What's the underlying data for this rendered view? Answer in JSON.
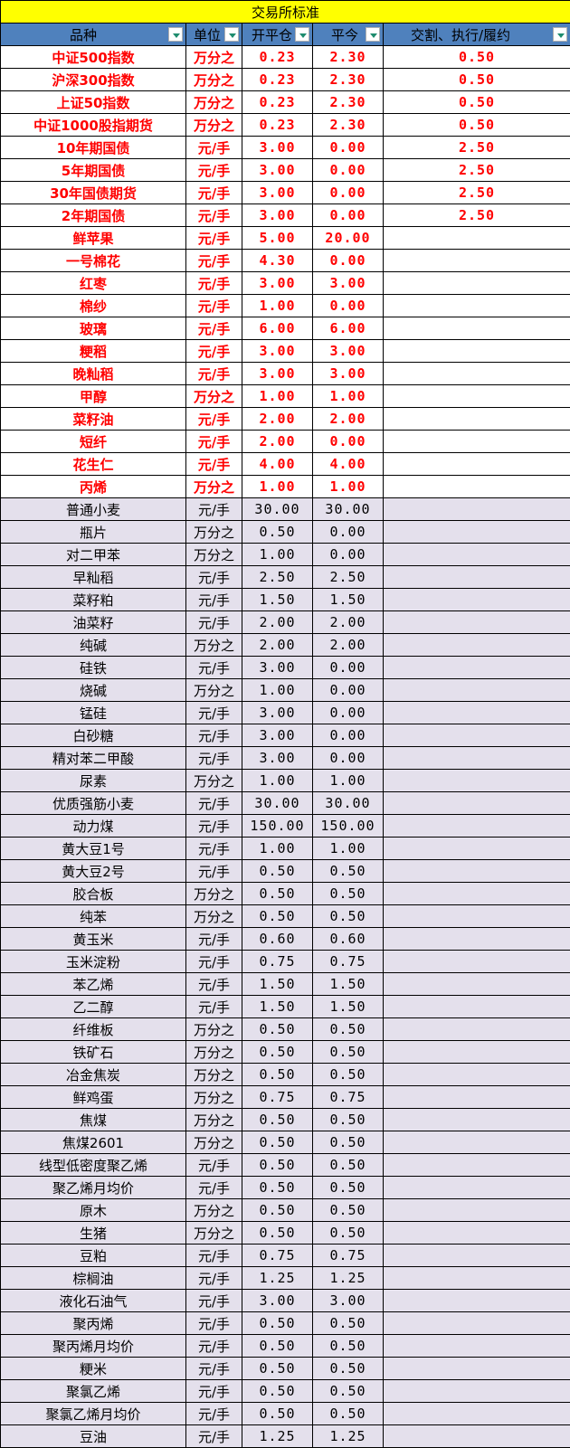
{
  "title": "交易所标准",
  "headers": [
    "品种",
    "单位",
    "开平仓",
    "平今",
    "交割、执行/履约"
  ],
  "colors": {
    "title_bg": "#ffff00",
    "header_bg": "#4f81bd",
    "highlight_text": "#ff0000",
    "row_bg_alt": "#e4e0ec"
  },
  "rows": [
    {
      "style": "red",
      "cells": [
        "中证500指数",
        "万分之",
        "0.23",
        "2.30",
        "0.50"
      ]
    },
    {
      "style": "red",
      "cells": [
        "沪深300指数",
        "万分之",
        "0.23",
        "2.30",
        "0.50"
      ]
    },
    {
      "style": "red",
      "cells": [
        "上证50指数",
        "万分之",
        "0.23",
        "2.30",
        "0.50"
      ]
    },
    {
      "style": "red",
      "cells": [
        "中证1000股指期货",
        "万分之",
        "0.23",
        "2.30",
        "0.50"
      ]
    },
    {
      "style": "red",
      "cells": [
        "10年期国债",
        "元/手",
        "3.00",
        "0.00",
        "2.50"
      ]
    },
    {
      "style": "red",
      "cells": [
        "5年期国债",
        "元/手",
        "3.00",
        "0.00",
        "2.50"
      ]
    },
    {
      "style": "red",
      "cells": [
        "30年国债期货",
        "元/手",
        "3.00",
        "0.00",
        "2.50"
      ]
    },
    {
      "style": "red",
      "cells": [
        "2年期国债",
        "元/手",
        "3.00",
        "0.00",
        "2.50"
      ]
    },
    {
      "style": "red",
      "cells": [
        "鲜苹果",
        "元/手",
        "5.00",
        "20.00",
        ""
      ]
    },
    {
      "style": "red",
      "cells": [
        "一号棉花",
        "元/手",
        "4.30",
        "0.00",
        ""
      ]
    },
    {
      "style": "red",
      "cells": [
        "红枣",
        "元/手",
        "3.00",
        "3.00",
        ""
      ]
    },
    {
      "style": "red",
      "cells": [
        "棉纱",
        "元/手",
        "1.00",
        "0.00",
        ""
      ]
    },
    {
      "style": "red",
      "cells": [
        "玻璃",
        "元/手",
        "6.00",
        "6.00",
        ""
      ]
    },
    {
      "style": "red",
      "cells": [
        "粳稻",
        "元/手",
        "3.00",
        "3.00",
        ""
      ]
    },
    {
      "style": "red",
      "cells": [
        "晚籼稻",
        "元/手",
        "3.00",
        "3.00",
        ""
      ]
    },
    {
      "style": "red",
      "cells": [
        "甲醇",
        "万分之",
        "1.00",
        "1.00",
        ""
      ]
    },
    {
      "style": "red",
      "cells": [
        "菜籽油",
        "元/手",
        "2.00",
        "2.00",
        ""
      ]
    },
    {
      "style": "red",
      "cells": [
        "短纤",
        "元/手",
        "2.00",
        "0.00",
        ""
      ]
    },
    {
      "style": "red",
      "cells": [
        "花生仁",
        "元/手",
        "4.00",
        "4.00",
        ""
      ]
    },
    {
      "style": "red",
      "cells": [
        "丙烯",
        "万分之",
        "1.00",
        "1.00",
        ""
      ]
    },
    {
      "style": "lav",
      "cells": [
        "普通小麦",
        "元/手",
        "30.00",
        "30.00",
        ""
      ]
    },
    {
      "style": "lav",
      "cells": [
        "瓶片",
        "万分之",
        "0.50",
        "0.00",
        ""
      ]
    },
    {
      "style": "lav",
      "cells": [
        "对二甲苯",
        "万分之",
        "1.00",
        "0.00",
        ""
      ]
    },
    {
      "style": "lav",
      "cells": [
        "早籼稻",
        "元/手",
        "2.50",
        "2.50",
        ""
      ]
    },
    {
      "style": "lav",
      "cells": [
        "菜籽粕",
        "元/手",
        "1.50",
        "1.50",
        ""
      ]
    },
    {
      "style": "lav",
      "cells": [
        "油菜籽",
        "元/手",
        "2.00",
        "2.00",
        ""
      ]
    },
    {
      "style": "lav",
      "cells": [
        "纯碱",
        "万分之",
        "2.00",
        "2.00",
        ""
      ]
    },
    {
      "style": "lav",
      "cells": [
        "硅铁",
        "元/手",
        "3.00",
        "0.00",
        ""
      ]
    },
    {
      "style": "lav",
      "cells": [
        "烧碱",
        "万分之",
        "1.00",
        "0.00",
        ""
      ]
    },
    {
      "style": "lav",
      "cells": [
        "锰硅",
        "元/手",
        "3.00",
        "0.00",
        ""
      ]
    },
    {
      "style": "lav",
      "cells": [
        "白砂糖",
        "元/手",
        "3.00",
        "0.00",
        ""
      ]
    },
    {
      "style": "lav",
      "cells": [
        "精对苯二甲酸",
        "元/手",
        "3.00",
        "0.00",
        ""
      ]
    },
    {
      "style": "lav",
      "cells": [
        "尿素",
        "万分之",
        "1.00",
        "1.00",
        ""
      ]
    },
    {
      "style": "lav",
      "cells": [
        "优质强筋小麦",
        "元/手",
        "30.00",
        "30.00",
        ""
      ]
    },
    {
      "style": "lav",
      "cells": [
        "动力煤",
        "元/手",
        "150.00",
        "150.00",
        ""
      ]
    },
    {
      "style": "lav",
      "cells": [
        "黄大豆1号",
        "元/手",
        "1.00",
        "1.00",
        ""
      ]
    },
    {
      "style": "lav",
      "cells": [
        "黄大豆2号",
        "元/手",
        "0.50",
        "0.50",
        ""
      ]
    },
    {
      "style": "lav",
      "cells": [
        "胶合板",
        "万分之",
        "0.50",
        "0.50",
        ""
      ]
    },
    {
      "style": "lav",
      "cells": [
        "纯苯",
        "万分之",
        "0.50",
        "0.50",
        ""
      ]
    },
    {
      "style": "lav",
      "cells": [
        "黄玉米",
        "元/手",
        "0.60",
        "0.60",
        ""
      ]
    },
    {
      "style": "lav",
      "cells": [
        "玉米淀粉",
        "元/手",
        "0.75",
        "0.75",
        ""
      ]
    },
    {
      "style": "lav",
      "cells": [
        "苯乙烯",
        "元/手",
        "1.50",
        "1.50",
        ""
      ]
    },
    {
      "style": "lav",
      "cells": [
        "乙二醇",
        "元/手",
        "1.50",
        "1.50",
        ""
      ]
    },
    {
      "style": "lav",
      "cells": [
        "纤维板",
        "万分之",
        "0.50",
        "0.50",
        ""
      ]
    },
    {
      "style": "lav",
      "cells": [
        "铁矿石",
        "万分之",
        "0.50",
        "0.50",
        ""
      ]
    },
    {
      "style": "lav",
      "cells": [
        "冶金焦炭",
        "万分之",
        "0.50",
        "0.50",
        ""
      ]
    },
    {
      "style": "lav",
      "cells": [
        "鲜鸡蛋",
        "万分之",
        "0.75",
        "0.75",
        ""
      ]
    },
    {
      "style": "lav",
      "cells": [
        "焦煤",
        "万分之",
        "0.50",
        "0.50",
        ""
      ]
    },
    {
      "style": "lav",
      "cells": [
        "焦煤2601",
        "万分之",
        "0.50",
        "0.50",
        ""
      ]
    },
    {
      "style": "lav",
      "cells": [
        "线型低密度聚乙烯",
        "元/手",
        "0.50",
        "0.50",
        ""
      ]
    },
    {
      "style": "lav",
      "cells": [
        "聚乙烯月均价",
        "元/手",
        "0.50",
        "0.50",
        ""
      ]
    },
    {
      "style": "lav",
      "cells": [
        "原木",
        "万分之",
        "0.50",
        "0.50",
        ""
      ]
    },
    {
      "style": "lav",
      "cells": [
        "生猪",
        "万分之",
        "0.50",
        "0.50",
        ""
      ]
    },
    {
      "style": "lav",
      "cells": [
        "豆粕",
        "元/手",
        "0.75",
        "0.75",
        ""
      ]
    },
    {
      "style": "lav",
      "cells": [
        "棕榈油",
        "元/手",
        "1.25",
        "1.25",
        ""
      ]
    },
    {
      "style": "lav",
      "cells": [
        "液化石油气",
        "元/手",
        "3.00",
        "3.00",
        ""
      ]
    },
    {
      "style": "lav",
      "cells": [
        "聚丙烯",
        "元/手",
        "0.50",
        "0.50",
        ""
      ]
    },
    {
      "style": "lav",
      "cells": [
        "聚丙烯月均价",
        "元/手",
        "0.50",
        "0.50",
        ""
      ]
    },
    {
      "style": "lav",
      "cells": [
        "粳米",
        "元/手",
        "0.50",
        "0.50",
        ""
      ]
    },
    {
      "style": "lav",
      "cells": [
        "聚氯乙烯",
        "元/手",
        "0.50",
        "0.50",
        ""
      ]
    },
    {
      "style": "lav",
      "cells": [
        "聚氯乙烯月均价",
        "元/手",
        "0.50",
        "0.50",
        ""
      ]
    },
    {
      "style": "lav",
      "cells": [
        "豆油",
        "元/手",
        "1.25",
        "1.25",
        ""
      ]
    }
  ]
}
